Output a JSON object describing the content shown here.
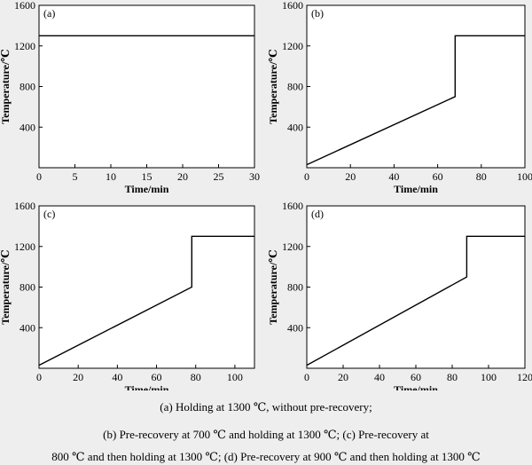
{
  "chart_data": [
    {
      "type": "line",
      "panel_label": "(a)",
      "xlabel": "Time/min",
      "ylabel": "Temperature/℃",
      "xlim": [
        0,
        30
      ],
      "ylim": [
        0,
        1600
      ],
      "xticks": [
        0,
        5,
        10,
        15,
        20,
        25,
        30
      ],
      "yticks": [
        400,
        800,
        1200,
        1600
      ],
      "grid": false,
      "series": [
        {
          "x": [
            0,
            30
          ],
          "y": [
            1300,
            1300
          ]
        }
      ]
    },
    {
      "type": "line",
      "panel_label": "(b)",
      "xlabel": "Time/min",
      "ylabel": "Temperature/℃",
      "xlim": [
        0,
        100
      ],
      "ylim": [
        0,
        1600
      ],
      "xticks": [
        0,
        20,
        40,
        60,
        80,
        100
      ],
      "yticks": [
        400,
        800,
        1200,
        1600
      ],
      "grid": false,
      "series": [
        {
          "x": [
            0,
            68,
            68,
            100
          ],
          "y": [
            30,
            700,
            1300,
            1300
          ]
        }
      ]
    },
    {
      "type": "line",
      "panel_label": "(c)",
      "xlabel": "Time/min",
      "ylabel": "Temperature/℃",
      "xlim": [
        0,
        110
      ],
      "ylim": [
        0,
        1600
      ],
      "xticks": [
        0,
        20,
        40,
        60,
        80,
        100
      ],
      "yticks": [
        400,
        800,
        1200,
        1600
      ],
      "grid": false,
      "series": [
        {
          "x": [
            0,
            78,
            78,
            110
          ],
          "y": [
            30,
            800,
            1300,
            1300
          ]
        }
      ]
    },
    {
      "type": "line",
      "panel_label": "(d)",
      "xlabel": "Time/min",
      "ylabel": "Temperature/℃",
      "xlim": [
        0,
        120
      ],
      "ylim": [
        0,
        1600
      ],
      "xticks": [
        0,
        20,
        40,
        60,
        80,
        100,
        120
      ],
      "yticks": [
        400,
        800,
        1200,
        1600
      ],
      "grid": false,
      "series": [
        {
          "x": [
            0,
            88,
            88,
            120
          ],
          "y": [
            30,
            900,
            1300,
            1300
          ]
        }
      ]
    }
  ],
  "caption": {
    "line1": "(a) Holding at 1300 ℃, without pre-recovery;",
    "line2": "(b) Pre-recovery at 700 ℃ and holding at 1300 ℃; (c) Pre-recovery at",
    "line3": "800 ℃ and then holding at 1300 ℃; (d) Pre-recovery at 900 ℃ and then holding at 1300 ℃"
  }
}
